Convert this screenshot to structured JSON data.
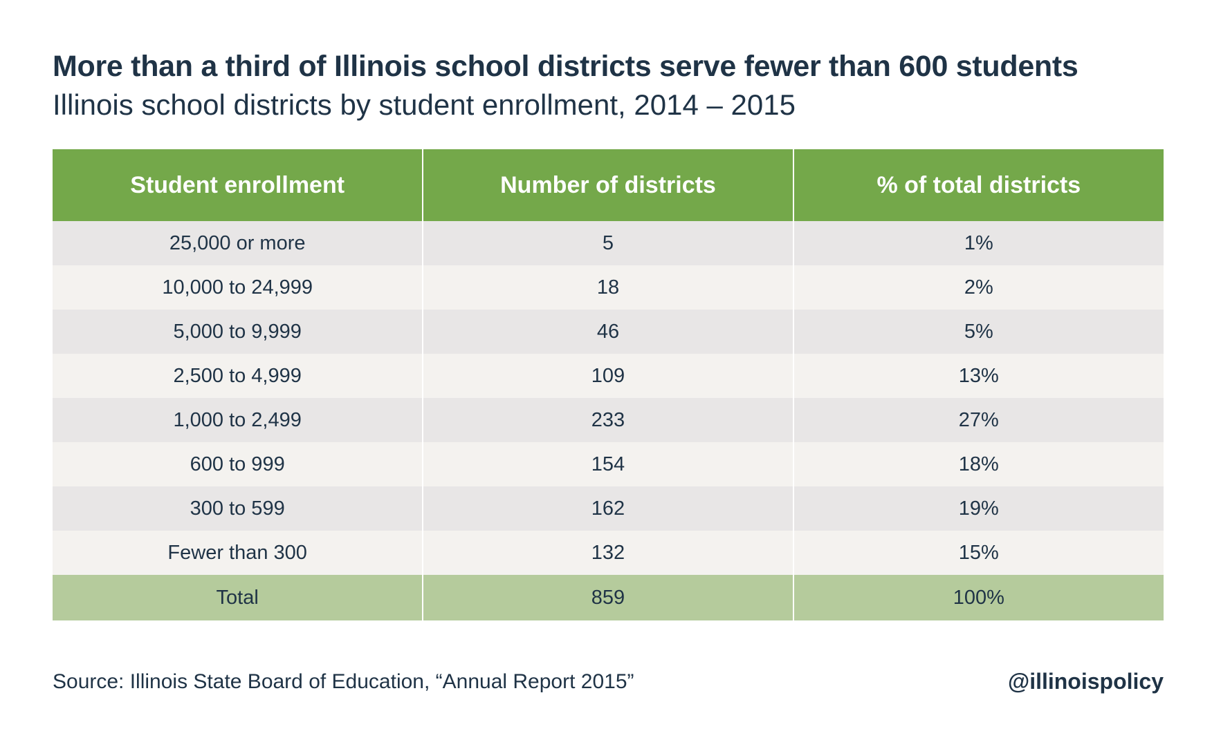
{
  "chart_data": {
    "type": "table",
    "title": "More than a third of Illinois school districts serve fewer than 600 students",
    "subtitle": "Illinois school districts by student enrollment, 2014 – 2015",
    "columns": [
      "Student enrollment",
      "Number of districts",
      "% of total districts"
    ],
    "rows": [
      {
        "enrollment": "25,000 or more",
        "districts": 5,
        "districts_text": "5",
        "percent_text": "1%"
      },
      {
        "enrollment": "10,000 to 24,999",
        "districts": 18,
        "districts_text": "18",
        "percent_text": "2%"
      },
      {
        "enrollment": "5,000 to 9,999",
        "districts": 46,
        "districts_text": "46",
        "percent_text": "5%"
      },
      {
        "enrollment": "2,500 to 4,999",
        "districts": 109,
        "districts_text": "109",
        "percent_text": "13%"
      },
      {
        "enrollment": "1,000 to 2,499",
        "districts": 233,
        "districts_text": "233",
        "percent_text": "27%"
      },
      {
        "enrollment": "600 to 999",
        "districts": 154,
        "districts_text": "154",
        "percent_text": "18%"
      },
      {
        "enrollment": "300 to 599",
        "districts": 162,
        "districts_text": "162",
        "percent_text": "19%"
      },
      {
        "enrollment": "Fewer than 300",
        "districts": 132,
        "districts_text": "132",
        "percent_text": "15%"
      }
    ],
    "total": {
      "label": "Total",
      "districts_text": "859",
      "percent_text": "100%"
    }
  },
  "footer": {
    "source": "Source: Illinois State Board of Education, “Annual Report 2015”",
    "handle": "@illinoispolicy"
  },
  "colors": {
    "header_bg": "#74a84a",
    "total_bg": "#b5cb9c",
    "row_odd": "#e8e6e6",
    "row_even": "#f4f2ef",
    "text": "#1f3346"
  }
}
